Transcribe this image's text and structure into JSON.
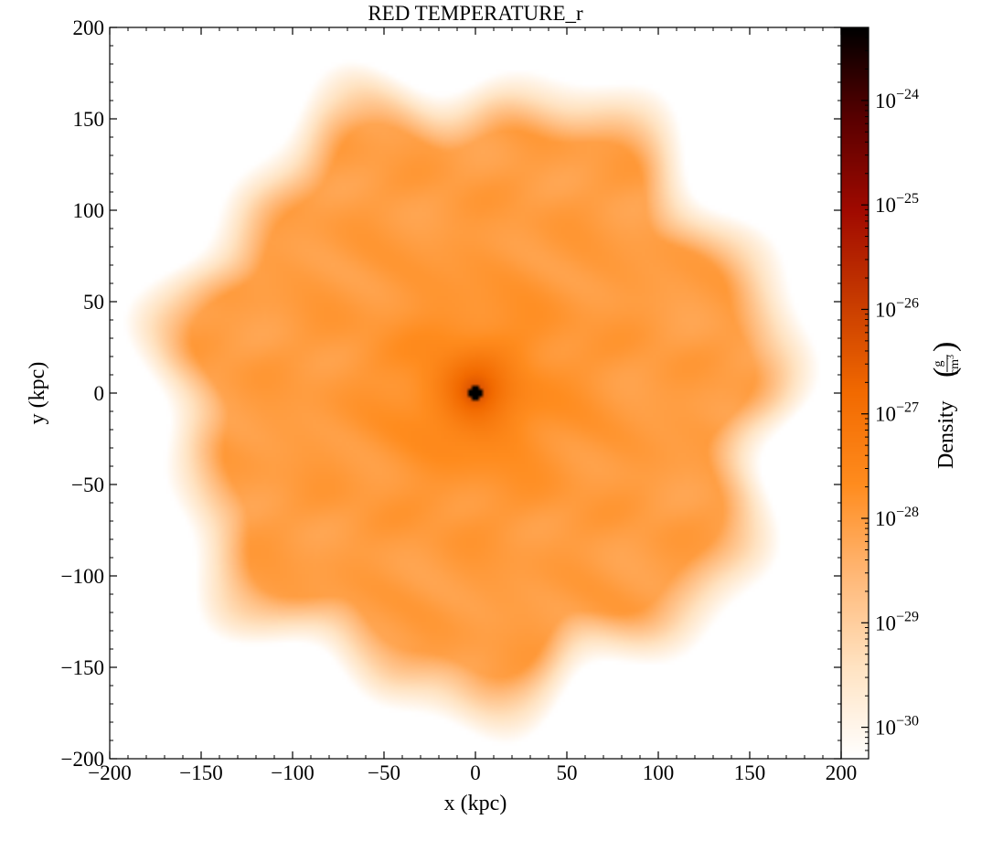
{
  "chart_data": {
    "type": "heatmap",
    "title": "RED TEMPERATURE_r",
    "xlabel": "x  (kpc)",
    "ylabel": "y  (kpc)",
    "xlim": [
      -200,
      200
    ],
    "ylim": [
      -200,
      200
    ],
    "x_ticks": [
      -200,
      -150,
      -100,
      -50,
      0,
      50,
      100,
      150,
      200
    ],
    "y_ticks": [
      -200,
      -150,
      -100,
      -50,
      0,
      50,
      100,
      150,
      200
    ],
    "x_tick_labels": [
      "−200",
      "−150",
      "−100",
      "−50",
      "0",
      "50",
      "100",
      "150",
      "200"
    ],
    "y_tick_labels": [
      "−200",
      "−150",
      "−100",
      "−50",
      "0",
      "50",
      "100",
      "150",
      "200"
    ],
    "colorbar": {
      "label": "Density",
      "unit_numerator": "g",
      "unit_denominator": "cm",
      "unit_denominator_power": "3",
      "scale": "log",
      "range": [
        5e-31,
        5e-24
      ],
      "ticks": [
        {
          "base": "10",
          "exponent": "−24",
          "value": 1e-24
        },
        {
          "base": "10",
          "exponent": "−25",
          "value": 1e-25
        },
        {
          "base": "10",
          "exponent": "−26",
          "value": 1e-26
        },
        {
          "base": "10",
          "exponent": "−27",
          "value": 1e-27
        },
        {
          "base": "10",
          "exponent": "−28",
          "value": 1e-28
        },
        {
          "base": "10",
          "exponent": "−29",
          "value": 1e-29
        },
        {
          "base": "10",
          "exponent": "−30",
          "value": 1e-30
        }
      ],
      "colormap": [
        "#ffffff",
        "#ffe3c2",
        "#ffb877",
        "#ff8c1e",
        "#f26a00",
        "#c83c00",
        "#a00a00",
        "#5a0000",
        "#000000"
      ]
    },
    "field": {
      "center_kpc": [
        0,
        0
      ],
      "halo_radius_kpc": 170,
      "core_density": 5e-24,
      "halo_density": 8e-29,
      "edge_density": 5e-31
    },
    "grid": false,
    "minor_ticks": true
  }
}
